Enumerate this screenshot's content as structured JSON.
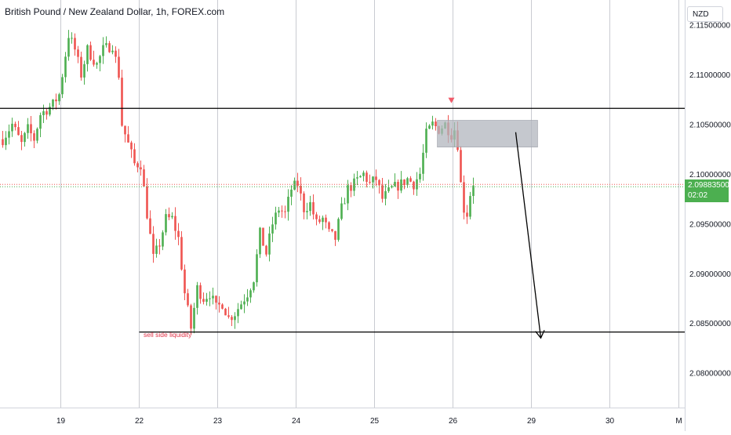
{
  "header": {
    "title": "British Pound / New Zealand Dollar, 1h, FOREX.com",
    "currency": "NZD"
  },
  "price_tag": {
    "price": "2.09883500",
    "countdown": "02:02"
  },
  "annotations": {
    "sell_side_liquidity": "sell side liquidity"
  },
  "colors": {
    "up": "#4caf50",
    "down": "#ef5350",
    "level_line": "#000000",
    "zone": "#b2b5be",
    "marker": "#f05a69"
  },
  "chart_data": {
    "type": "candlestick",
    "instrument": "British Pound / New Zealand Dollar",
    "timeframe": "1h",
    "source": "FOREX.com",
    "ylim": [
      2.0765,
      2.1175
    ],
    "y_ticks": [
      "2.11500000",
      "2.11000000",
      "2.10500000",
      "2.10000000",
      "2.09500000",
      "2.09000000",
      "2.08500000",
      "2.08000000"
    ],
    "y_tick_values": [
      2.115,
      2.11,
      2.105,
      2.1,
      2.095,
      2.09,
      2.085,
      2.08
    ],
    "x_ticks": [
      "19",
      "22",
      "23",
      "24",
      "25",
      "26",
      "29",
      "30",
      "M"
    ],
    "x_tick_bars": [
      19,
      44,
      69,
      94,
      119,
      144,
      169,
      194,
      216
    ],
    "last_price": 2.098835,
    "levels": [
      {
        "name": "resistance",
        "price": 2.1066
      },
      {
        "name": "sell side liquidity",
        "price": 2.0841,
        "start_bar": 44
      }
    ],
    "zone": {
      "start_bar": 139,
      "end_bar": 171,
      "top": 2.1054,
      "bottom": 2.1027
    },
    "marker": {
      "bar": 143.5,
      "price": 2.1072
    },
    "arrow": {
      "from_bar": 164,
      "from_price": 2.1042,
      "to_bar": 172,
      "to_price": 2.0835
    },
    "anchors": [
      [
        0,
        2.1035
      ],
      [
        3,
        2.105
      ],
      [
        6,
        2.103
      ],
      [
        8,
        2.1045
      ],
      [
        10,
        2.1035
      ],
      [
        12,
        2.106
      ],
      [
        14,
        2.1065
      ],
      [
        16,
        2.107
      ],
      [
        18,
        2.108
      ],
      [
        21,
        2.114
      ],
      [
        23,
        2.1125
      ],
      [
        25,
        2.11
      ],
      [
        27,
        2.1125
      ],
      [
        30,
        2.111
      ],
      [
        32,
        2.1125
      ],
      [
        35,
        2.113
      ],
      [
        37,
        2.11
      ],
      [
        38,
        2.105
      ],
      [
        40,
        2.103
      ],
      [
        42,
        2.101
      ],
      [
        44,
        2.101
      ],
      [
        46,
        2.096
      ],
      [
        48,
        2.0915
      ],
      [
        50,
        2.093
      ],
      [
        52,
        2.0955
      ],
      [
        54,
        2.0955
      ],
      [
        56,
        2.0935
      ],
      [
        58,
        2.088
      ],
      [
        60,
        2.0845
      ],
      [
        62,
        2.0885
      ],
      [
        64,
        2.0875
      ],
      [
        66,
        2.088
      ],
      [
        68,
        2.0865
      ],
      [
        70,
        2.087
      ],
      [
        72,
        2.0855
      ],
      [
        74,
        2.086
      ],
      [
        76,
        2.087
      ],
      [
        78,
        2.088
      ],
      [
        80,
        2.0895
      ],
      [
        82,
        2.094
      ],
      [
        84,
        2.092
      ],
      [
        86,
        2.095
      ],
      [
        88,
        2.0965
      ],
      [
        90,
        2.096
      ],
      [
        92,
        2.0985
      ],
      [
        94,
        2.099
      ],
      [
        96,
        2.0965
      ],
      [
        98,
        2.097
      ],
      [
        100,
        2.095
      ],
      [
        102,
        2.0955
      ],
      [
        104,
        2.094
      ],
      [
        106,
        2.0935
      ],
      [
        108,
        2.0965
      ],
      [
        110,
        2.0985
      ],
      [
        112,
        2.099
      ],
      [
        115,
        2.1
      ],
      [
        117,
        2.099
      ],
      [
        119,
        2.0995
      ],
      [
        121,
        2.0975
      ],
      [
        124,
        2.0985
      ],
      [
        127,
        2.099
      ],
      [
        129,
        2.0995
      ],
      [
        131,
        2.099
      ],
      [
        133,
        2.1
      ],
      [
        135,
        2.104
      ],
      [
        137,
        2.105
      ],
      [
        139,
        2.1045
      ],
      [
        141,
        2.105
      ],
      [
        143,
        2.104
      ],
      [
        144,
        2.1045
      ],
      [
        145,
        2.103
      ],
      [
        146,
        2.099
      ],
      [
        147,
        2.0965
      ],
      [
        148,
        2.096
      ],
      [
        149,
        2.098
      ],
      [
        150,
        2.0985
      ]
    ]
  }
}
